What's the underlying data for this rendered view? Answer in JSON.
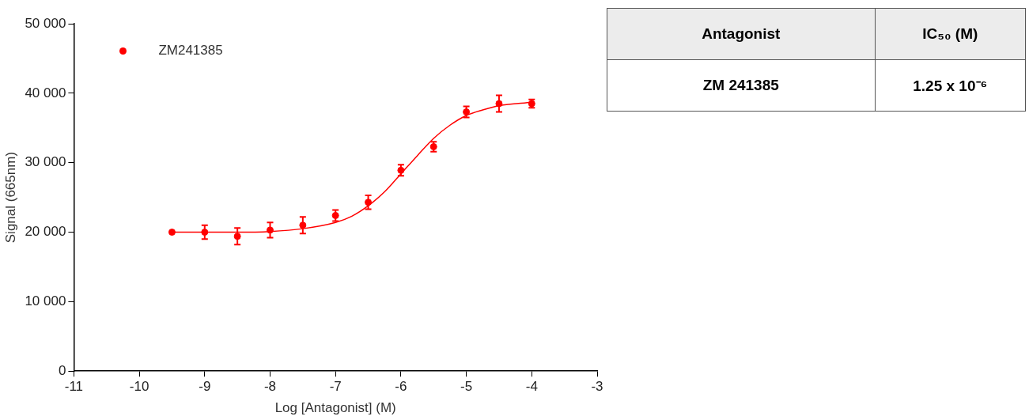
{
  "chart_data": [
    {
      "type": "scatter",
      "xlabel": "Log [Antagonist] (M)",
      "ylabel": "Signal (665nm)",
      "xlim": [
        -11,
        -3
      ],
      "xticks": [
        -11,
        -10,
        -9,
        -8,
        -7,
        -6,
        -5,
        -4,
        -3
      ],
      "ylim": [
        0,
        50000
      ],
      "yticks": [
        {
          "value": 0,
          "label": "0"
        },
        {
          "value": 10000,
          "label": "10 000"
        },
        {
          "value": 20000,
          "label": "20 000"
        },
        {
          "value": 30000,
          "label": "30 000"
        },
        {
          "value": 40000,
          "label": "40 000"
        },
        {
          "value": 50000,
          "label": "50 000"
        }
      ],
      "grid": false,
      "legend": "top left",
      "marker": "circle",
      "series": [
        {
          "name": "ZM241385",
          "type": "scatter",
          "color": "#ff0000",
          "x": [
            -9.5,
            -9,
            -8.5,
            -8,
            -7.5,
            -7,
            -6.5,
            -6,
            -5.5,
            -5,
            -4.5,
            -4
          ],
          "values": [
            20000,
            20000,
            19400,
            20300,
            21000,
            22400,
            24300,
            28900,
            32300,
            37300,
            38500,
            38500
          ],
          "errors": [
            null,
            1000,
            1200,
            1100,
            1200,
            800,
            1000,
            800,
            700,
            800,
            1200,
            600
          ]
        },
        {
          "type": "line",
          "color": "#ff0000",
          "marker": "none",
          "x": [
            -9.5,
            -9,
            -8.5,
            -8,
            -7.5,
            -7,
            -6.75,
            -6.5,
            -6.25,
            -6,
            -5.75,
            -5.5,
            -5.25,
            -5,
            -4.75,
            -4.5,
            -4
          ],
          "values": [
            20000,
            20000,
            20000,
            20100,
            20500,
            21400,
            22300,
            23800,
            25800,
            28400,
            31000,
            33500,
            35400,
            36800,
            37600,
            38200,
            38700
          ]
        }
      ]
    },
    {
      "type": "other",
      "annotations": [
        "Antagonist",
        "IC₅₀ (M)",
        "ZM 241385",
        "1.25 x 10⁻⁶"
      ]
    }
  ]
}
